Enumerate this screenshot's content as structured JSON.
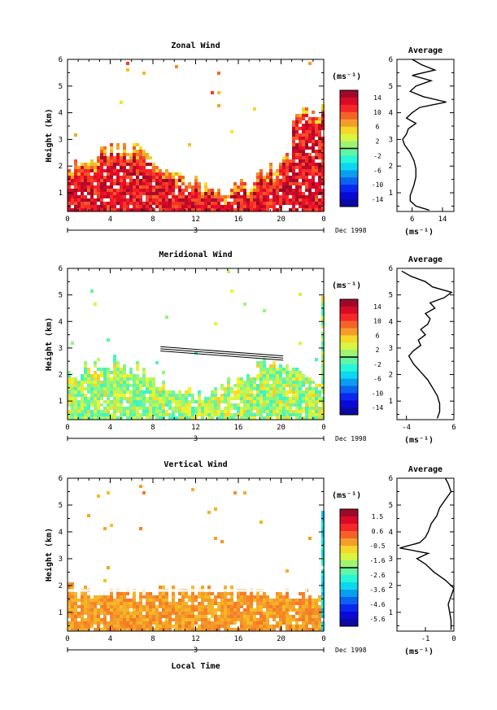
{
  "chart_data": [
    {
      "type": "heatmap",
      "title": "Zonal Wind",
      "ylabel": "Height (km)",
      "x_ticks": [
        "0",
        "4",
        "8",
        "12",
        "16",
        "20",
        "0"
      ],
      "y_ticks": [
        "1",
        "2",
        "3",
        "4",
        "5",
        "6"
      ],
      "xlim": [
        0,
        24
      ],
      "ylim": [
        0.3,
        6
      ],
      "date_label": "Dec 1998",
      "date_marker": "3",
      "colorbar": {
        "unit": "(ms⁻¹)",
        "ticks": [
          "14",
          "10",
          "6",
          "2",
          "-2",
          "-6",
          "-10",
          "-14"
        ],
        "range": [
          -16,
          16
        ]
      },
      "average_profile": {
        "title": "Average",
        "xlabel": "(ms⁻¹)",
        "x_ticks": [
          "6",
          "14"
        ],
        "xlim": [
          2,
          17
        ],
        "heights": [
          0.35,
          0.5,
          0.7,
          0.9,
          1.1,
          1.3,
          1.6,
          1.9,
          2.2,
          2.5,
          2.8,
          3.0,
          3.2,
          3.4,
          3.6,
          3.8,
          4.0,
          4.2,
          4.4,
          4.6,
          4.8,
          5.0,
          5.2,
          5.4,
          5.6,
          5.8,
          6.0
        ],
        "values": [
          10.5,
          7.0,
          5.5,
          5.5,
          6.0,
          6.5,
          7.0,
          7.0,
          6.5,
          5.5,
          4.0,
          3.5,
          4.5,
          5.0,
          7.0,
          4.5,
          6.0,
          8.0,
          15.0,
          9.0,
          5.5,
          7.0,
          11.0,
          6.0,
          12.0,
          8.5,
          6.0
        ]
      }
    },
    {
      "type": "heatmap",
      "title": "Meridional Wind",
      "ylabel": "Height (km)",
      "x_ticks": [
        "0",
        "4",
        "8",
        "12",
        "16",
        "20",
        "0"
      ],
      "y_ticks": [
        "1",
        "2",
        "3",
        "4",
        "5",
        "6"
      ],
      "xlim": [
        0,
        24
      ],
      "ylim": [
        0.3,
        6
      ],
      "date_label": "Dec 1998",
      "date_marker": "3",
      "colorbar": {
        "unit": "(ms⁻¹)",
        "ticks": [
          "14",
          "10",
          "6",
          "2",
          "-2",
          "-6",
          "-10",
          "-14"
        ],
        "range": [
          -16,
          16
        ]
      },
      "average_profile": {
        "title": "Average",
        "xlabel": "(ms⁻¹)",
        "x_ticks": [
          "-4",
          "6"
        ],
        "xlim": [
          -6,
          6
        ],
        "heights": [
          0.35,
          0.6,
          0.9,
          1.2,
          1.5,
          1.8,
          2.1,
          2.4,
          2.7,
          2.9,
          3.1,
          3.3,
          3.5,
          3.7,
          3.9,
          4.1,
          4.3,
          4.5,
          4.7,
          4.9,
          5.1,
          5.3,
          5.5,
          5.7,
          5.9
        ],
        "values": [
          2.5,
          3.0,
          3.0,
          2.5,
          1.5,
          0.5,
          -1.0,
          -2.5,
          -3.5,
          -2.5,
          -1.0,
          -1.5,
          0.0,
          -1.0,
          0.5,
          1.0,
          0.0,
          2.0,
          1.0,
          4.0,
          5.5,
          1.5,
          0.0,
          -3.0,
          -5.0
        ]
      }
    },
    {
      "type": "heatmap",
      "title": "Vertical Wind",
      "ylabel": "Height (km)",
      "xlabel": "Local Time",
      "x_ticks": [
        "0",
        "4",
        "8",
        "12",
        "16",
        "20",
        "0"
      ],
      "y_ticks": [
        "1",
        "2",
        "3",
        "4",
        "5",
        "6"
      ],
      "xlim": [
        0,
        24
      ],
      "ylim": [
        0.3,
        6
      ],
      "date_label": "Dec 1998",
      "date_marker": "3",
      "colorbar": {
        "unit": "(ms⁻¹)",
        "ticks": [
          "1.5",
          "0.6",
          "-0.5",
          "-1.6",
          "-2.6",
          "-3.6",
          "-4.6",
          "-5.6"
        ],
        "range": [
          -6.0,
          2.0
        ]
      },
      "average_profile": {
        "title": "Average",
        "xlabel": "(ms⁻¹)",
        "x_ticks": [
          "-1",
          "0"
        ],
        "xlim": [
          -2,
          0
        ],
        "heights": [
          0.35,
          0.7,
          1.0,
          1.3,
          1.6,
          1.9,
          2.2,
          2.5,
          2.8,
          3.0,
          3.2,
          3.4,
          3.6,
          3.8,
          4.0,
          4.3,
          4.6,
          4.9,
          5.2,
          5.5,
          5.8,
          6.0
        ],
        "values": [
          -0.1,
          -0.1,
          -0.15,
          -0.2,
          -0.1,
          0.0,
          -0.3,
          -0.7,
          -1.0,
          -1.3,
          -0.9,
          -1.9,
          -1.2,
          -1.0,
          -0.9,
          -0.8,
          -0.6,
          -0.5,
          -0.3,
          -0.1,
          -0.2,
          -0.3
        ]
      }
    }
  ]
}
